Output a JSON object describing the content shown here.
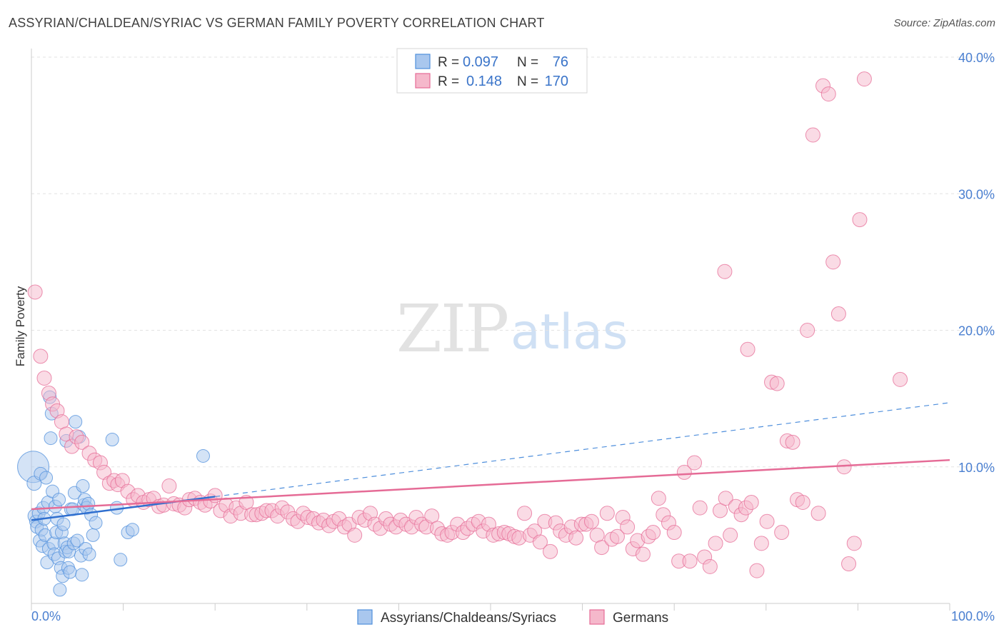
{
  "header": {
    "title": "ASSYRIAN/CHALDEAN/SYRIAC VS GERMAN FAMILY POVERTY CORRELATION CHART",
    "source": "Source: ZipAtlas.com"
  },
  "watermark": {
    "zip": "ZIP",
    "atlas": "atlas"
  },
  "stats": {
    "rows": [
      {
        "r_label": "R =",
        "r_value": "0.097",
        "n_label": "N =",
        "n_value": "76",
        "color": "#a9c7ee"
      },
      {
        "r_label": "R =",
        "r_value": "0.148",
        "n_label": "N =",
        "n_value": "170",
        "color": "#f5b8cb"
      }
    ]
  },
  "chart_data": {
    "type": "scatter",
    "title": "ASSYRIAN/CHALDEAN/SYRIAC VS GERMAN FAMILY POVERTY CORRELATION CHART",
    "xlabel": "",
    "ylabel": "Family Poverty",
    "xlim": [
      0,
      100
    ],
    "ylim": [
      0,
      40
    ],
    "x_tick_labels": [
      "0.0%",
      "100.0%"
    ],
    "y_ticks": [
      10,
      20,
      30,
      40
    ],
    "y_tick_labels": [
      "10.0%",
      "20.0%",
      "30.0%",
      "40.0%"
    ],
    "grid": true,
    "legend_position": "bottom",
    "series": [
      {
        "name": "Assyrians/Chaldeans/Syriacs",
        "color": "#4f8fdc",
        "fill": "#a9c7ee",
        "trend": {
          "x": [
            0,
            100
          ],
          "y": [
            6.1,
            14.7
          ],
          "solid_until": 20
        },
        "points": [
          [
            0.2,
            10.0,
            22
          ],
          [
            0.3,
            8.8,
            10
          ],
          [
            0.4,
            6.4,
            10
          ],
          [
            0.5,
            6.0,
            9
          ],
          [
            0.6,
            5.6,
            9
          ],
          [
            0.8,
            6.6,
            9
          ],
          [
            0.9,
            4.6,
            9
          ],
          [
            1.0,
            9.5,
            9
          ],
          [
            1.1,
            5.4,
            9
          ],
          [
            1.2,
            4.2,
            9
          ],
          [
            1.3,
            7.0,
            9
          ],
          [
            1.4,
            6.2,
            9
          ],
          [
            1.5,
            5.0,
            9
          ],
          [
            1.6,
            9.2,
            9
          ],
          [
            1.7,
            3.0,
            9
          ],
          [
            1.8,
            7.4,
            9
          ],
          [
            1.9,
            4.0,
            9
          ],
          [
            2.0,
            15.1,
            9
          ],
          [
            2.1,
            12.1,
            9
          ],
          [
            2.2,
            13.9,
            9
          ],
          [
            2.3,
            8.2,
            9
          ],
          [
            2.4,
            4.4,
            9
          ],
          [
            2.5,
            3.6,
            9
          ],
          [
            2.6,
            7.1,
            9
          ],
          [
            2.7,
            5.2,
            9
          ],
          [
            2.8,
            6.2,
            9
          ],
          [
            2.9,
            3.3,
            9
          ],
          [
            3.0,
            7.6,
            9
          ],
          [
            3.1,
            1.0,
            9
          ],
          [
            3.2,
            2.6,
            9
          ],
          [
            3.3,
            5.2,
            9
          ],
          [
            3.4,
            2.0,
            9
          ],
          [
            3.5,
            5.8,
            9
          ],
          [
            3.6,
            4.4,
            9
          ],
          [
            3.7,
            3.8,
            9
          ],
          [
            3.8,
            11.9,
            9
          ],
          [
            3.9,
            4.1,
            9
          ],
          [
            4.0,
            2.6,
            9
          ],
          [
            4.1,
            3.8,
            9
          ],
          [
            4.2,
            2.3,
            9
          ],
          [
            4.3,
            6.9,
            9
          ],
          [
            4.5,
            6.9,
            9
          ],
          [
            4.6,
            4.4,
            9
          ],
          [
            4.7,
            8.1,
            9
          ],
          [
            4.8,
            13.3,
            9
          ],
          [
            5.0,
            4.6,
            9
          ],
          [
            5.2,
            12.2,
            9
          ],
          [
            5.4,
            3.5,
            9
          ],
          [
            5.5,
            2.1,
            9
          ],
          [
            5.6,
            8.6,
            9
          ],
          [
            5.7,
            7.2,
            9
          ],
          [
            5.8,
            7.6,
            9
          ],
          [
            5.9,
            4.0,
            9
          ],
          [
            6.0,
            7.0,
            9
          ],
          [
            6.2,
            7.3,
            9
          ],
          [
            6.3,
            3.6,
            9
          ],
          [
            6.5,
            6.5,
            9
          ],
          [
            6.7,
            5.0,
            9
          ],
          [
            7.0,
            5.9,
            9
          ],
          [
            8.8,
            12.0,
            9
          ],
          [
            9.3,
            7.0,
            9
          ],
          [
            9.7,
            3.2,
            9
          ],
          [
            10.5,
            5.2,
            9
          ],
          [
            11.0,
            5.4,
            9
          ],
          [
            18.7,
            10.8,
            9
          ]
        ]
      },
      {
        "name": "Germans",
        "color": "#e56b96",
        "fill": "#f5b8cb",
        "trend": {
          "x": [
            0,
            100
          ],
          "y": [
            6.9,
            10.5
          ]
        },
        "points": [
          [
            0.4,
            22.8,
            10
          ],
          [
            1.0,
            18.1,
            10
          ],
          [
            1.4,
            16.5,
            10
          ],
          [
            1.9,
            15.4,
            10
          ],
          [
            2.3,
            14.6,
            10
          ],
          [
            2.8,
            14.1,
            10
          ],
          [
            3.3,
            13.3,
            10
          ],
          [
            3.8,
            12.4,
            10
          ],
          [
            4.4,
            11.5,
            10
          ],
          [
            4.9,
            12.2,
            10
          ],
          [
            5.5,
            11.8,
            10
          ],
          [
            6.3,
            11.0,
            10
          ],
          [
            6.9,
            10.5,
            10
          ],
          [
            7.5,
            10.3,
            10
          ],
          [
            7.9,
            9.6,
            10
          ],
          [
            8.5,
            8.8,
            10
          ],
          [
            9.0,
            9.0,
            10
          ],
          [
            9.4,
            8.7,
            10
          ],
          [
            9.9,
            9.0,
            10
          ],
          [
            10.5,
            8.2,
            10
          ],
          [
            11.1,
            7.6,
            10
          ],
          [
            11.6,
            7.9,
            10
          ],
          [
            12.2,
            7.4,
            10
          ],
          [
            12.8,
            7.6,
            10
          ],
          [
            13.3,
            7.7,
            10
          ],
          [
            13.9,
            7.1,
            10
          ],
          [
            14.4,
            7.2,
            10
          ],
          [
            15.0,
            8.6,
            10
          ],
          [
            15.5,
            7.3,
            10
          ],
          [
            16.1,
            7.2,
            10
          ],
          [
            16.7,
            7.0,
            10
          ],
          [
            17.2,
            7.6,
            10
          ],
          [
            17.8,
            7.7,
            10
          ],
          [
            18.4,
            7.4,
            10
          ],
          [
            18.9,
            7.2,
            10
          ],
          [
            19.5,
            7.5,
            10
          ],
          [
            20.0,
            7.9,
            10
          ],
          [
            20.6,
            6.8,
            10
          ],
          [
            21.2,
            7.2,
            10
          ],
          [
            21.7,
            6.4,
            10
          ],
          [
            22.3,
            7.0,
            10
          ],
          [
            22.8,
            6.6,
            10
          ],
          [
            23.4,
            7.4,
            10
          ],
          [
            24.0,
            6.5,
            10
          ],
          [
            24.5,
            6.5,
            10
          ],
          [
            25.1,
            6.6,
            10
          ],
          [
            25.6,
            6.8,
            10
          ],
          [
            26.2,
            6.8,
            10
          ],
          [
            26.8,
            6.4,
            10
          ],
          [
            27.3,
            7.0,
            10
          ],
          [
            27.9,
            6.7,
            10
          ],
          [
            28.5,
            6.2,
            10
          ],
          [
            29.0,
            6.0,
            10
          ],
          [
            29.6,
            6.6,
            10
          ],
          [
            30.1,
            6.3,
            10
          ],
          [
            30.7,
            6.2,
            10
          ],
          [
            31.3,
            5.9,
            10
          ],
          [
            31.8,
            6.1,
            10
          ],
          [
            32.4,
            5.7,
            10
          ],
          [
            32.9,
            6.0,
            10
          ],
          [
            33.5,
            6.2,
            10
          ],
          [
            34.1,
            5.6,
            10
          ],
          [
            34.6,
            5.8,
            10
          ],
          [
            35.2,
            5.0,
            10
          ],
          [
            35.7,
            6.3,
            10
          ],
          [
            36.3,
            6.1,
            10
          ],
          [
            36.9,
            6.6,
            10
          ],
          [
            37.4,
            5.8,
            10
          ],
          [
            38.0,
            5.5,
            10
          ],
          [
            38.6,
            6.2,
            10
          ],
          [
            39.1,
            5.8,
            10
          ],
          [
            39.7,
            5.6,
            10
          ],
          [
            40.2,
            6.1,
            10
          ],
          [
            40.8,
            5.8,
            10
          ],
          [
            41.4,
            5.6,
            10
          ],
          [
            41.9,
            6.3,
            10
          ],
          [
            42.5,
            5.8,
            10
          ],
          [
            43.0,
            5.6,
            10
          ],
          [
            43.6,
            6.4,
            10
          ],
          [
            44.2,
            5.5,
            10
          ],
          [
            44.7,
            5.1,
            10
          ],
          [
            45.3,
            5.0,
            10
          ],
          [
            45.8,
            5.2,
            10
          ],
          [
            46.4,
            5.8,
            10
          ],
          [
            47.0,
            5.2,
            10
          ],
          [
            47.5,
            5.5,
            10
          ],
          [
            48.1,
            5.8,
            10
          ],
          [
            48.7,
            6.0,
            10
          ],
          [
            49.2,
            5.3,
            10
          ],
          [
            49.8,
            5.8,
            10
          ],
          [
            50.3,
            5.0,
            10
          ],
          [
            50.9,
            5.1,
            10
          ],
          [
            51.5,
            5.2,
            10
          ],
          [
            52.0,
            5.1,
            10
          ],
          [
            52.6,
            4.9,
            10
          ],
          [
            53.1,
            4.8,
            10
          ],
          [
            53.7,
            6.6,
            10
          ],
          [
            54.3,
            5.0,
            10
          ],
          [
            54.8,
            5.3,
            10
          ],
          [
            55.4,
            4.5,
            10
          ],
          [
            55.9,
            6.0,
            10
          ],
          [
            56.5,
            3.8,
            10
          ],
          [
            57.1,
            5.9,
            10
          ],
          [
            57.6,
            5.3,
            10
          ],
          [
            58.2,
            5.0,
            10
          ],
          [
            58.8,
            5.6,
            10
          ],
          [
            59.3,
            4.8,
            10
          ],
          [
            59.9,
            5.8,
            10
          ],
          [
            60.4,
            5.8,
            10
          ],
          [
            61.0,
            6.0,
            10
          ],
          [
            61.6,
            5.0,
            10
          ],
          [
            62.1,
            4.1,
            10
          ],
          [
            62.7,
            6.6,
            10
          ],
          [
            63.2,
            4.7,
            10
          ],
          [
            63.8,
            4.9,
            10
          ],
          [
            64.4,
            6.3,
            10
          ],
          [
            64.9,
            5.6,
            10
          ],
          [
            65.5,
            4.0,
            10
          ],
          [
            66.0,
            4.6,
            10
          ],
          [
            66.6,
            3.6,
            10
          ],
          [
            67.2,
            4.9,
            10
          ],
          [
            67.7,
            5.2,
            10
          ],
          [
            68.3,
            7.7,
            10
          ],
          [
            68.8,
            6.5,
            10
          ],
          [
            69.4,
            5.9,
            10
          ],
          [
            70.0,
            5.2,
            10
          ],
          [
            70.5,
            3.1,
            10
          ],
          [
            71.1,
            9.6,
            10
          ],
          [
            71.7,
            3.1,
            10
          ],
          [
            72.2,
            10.3,
            10
          ],
          [
            72.8,
            7.0,
            10
          ],
          [
            73.3,
            3.4,
            10
          ],
          [
            73.9,
            2.7,
            10
          ],
          [
            74.5,
            4.4,
            10
          ],
          [
            75.0,
            6.8,
            10
          ],
          [
            75.6,
            7.7,
            10
          ],
          [
            76.1,
            5.0,
            10
          ],
          [
            76.7,
            7.1,
            10
          ],
          [
            77.3,
            6.5,
            10
          ],
          [
            77.8,
            7.0,
            10
          ],
          [
            78.4,
            7.4,
            10
          ],
          [
            75.5,
            24.3,
            10
          ],
          [
            78.0,
            18.6,
            10
          ],
          [
            79.0,
            2.4,
            10
          ],
          [
            79.5,
            4.4,
            10
          ],
          [
            80.1,
            6.0,
            10
          ],
          [
            80.6,
            16.2,
            10
          ],
          [
            81.2,
            16.1,
            10
          ],
          [
            81.7,
            5.2,
            10
          ],
          [
            82.3,
            11.9,
            10
          ],
          [
            82.9,
            11.8,
            10
          ],
          [
            83.4,
            7.6,
            10
          ],
          [
            84.0,
            7.4,
            10
          ],
          [
            84.5,
            20.0,
            10
          ],
          [
            85.1,
            34.3,
            10
          ],
          [
            85.7,
            6.6,
            10
          ],
          [
            86.2,
            37.9,
            10
          ],
          [
            86.8,
            37.3,
            10
          ],
          [
            87.3,
            25.0,
            10
          ],
          [
            87.9,
            21.2,
            10
          ],
          [
            88.5,
            10.0,
            10
          ],
          [
            89.0,
            2.9,
            10
          ],
          [
            89.6,
            4.4,
            10
          ],
          [
            90.2,
            28.1,
            10
          ],
          [
            90.7,
            38.4,
            10
          ],
          [
            94.6,
            16.4,
            10
          ]
        ]
      }
    ]
  }
}
